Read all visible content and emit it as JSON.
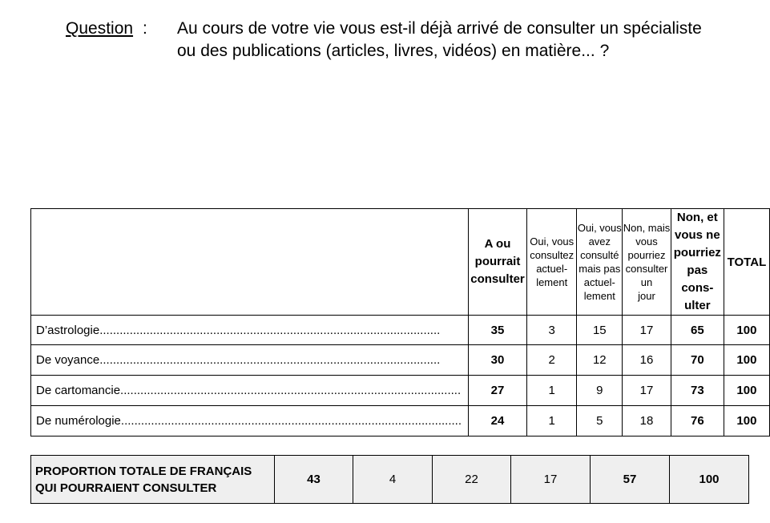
{
  "question": {
    "label": "Question",
    "colon": ":",
    "line1": "Au cours de votre vie vous est-il déjà arrivé de consulter un spécialiste",
    "line2": "ou des publications (articles, livres, vidéos) en matière... ?"
  },
  "table": {
    "headers": [
      {
        "lines": [
          "A ou",
          "pourrait",
          "consulter"
        ]
      },
      {
        "lines": [
          "Oui, vous",
          "consultez",
          "actuel-",
          "lement"
        ]
      },
      {
        "lines": [
          "Oui, vous",
          "avez consulté",
          "mais pas",
          "actuel-",
          "lement"
        ]
      },
      {
        "lines": [
          "Non, mais",
          "vous pourriez",
          "consulter un",
          "jour"
        ]
      },
      {
        "lines": [
          "Non, et",
          "vous ne",
          "pourriez",
          "pas cons-",
          "ulter"
        ]
      },
      {
        "lines": [
          "TOTAL"
        ]
      }
    ],
    "rows": [
      {
        "label": "D’astrologie",
        "values": [
          "35",
          "3",
          "15",
          "17",
          "65",
          "100"
        ]
      },
      {
        "label": "De voyance",
        "values": [
          "30",
          "2",
          "12",
          "16",
          "70",
          "100"
        ]
      },
      {
        "label": "De cartomancie",
        "values": [
          "27",
          "1",
          "9",
          "17",
          "73",
          "100"
        ]
      },
      {
        "label": "De numérologie",
        "values": [
          "24",
          "1",
          "5",
          "18",
          "76",
          "100"
        ]
      }
    ]
  },
  "total_row": {
    "label_line1": "PROPORTION TOTALE DE FRANÇAIS",
    "label_line2": "QUI POURRAIENT CONSULTER",
    "values": [
      "43",
      "4",
      "22",
      "17",
      "57",
      "100"
    ]
  }
}
